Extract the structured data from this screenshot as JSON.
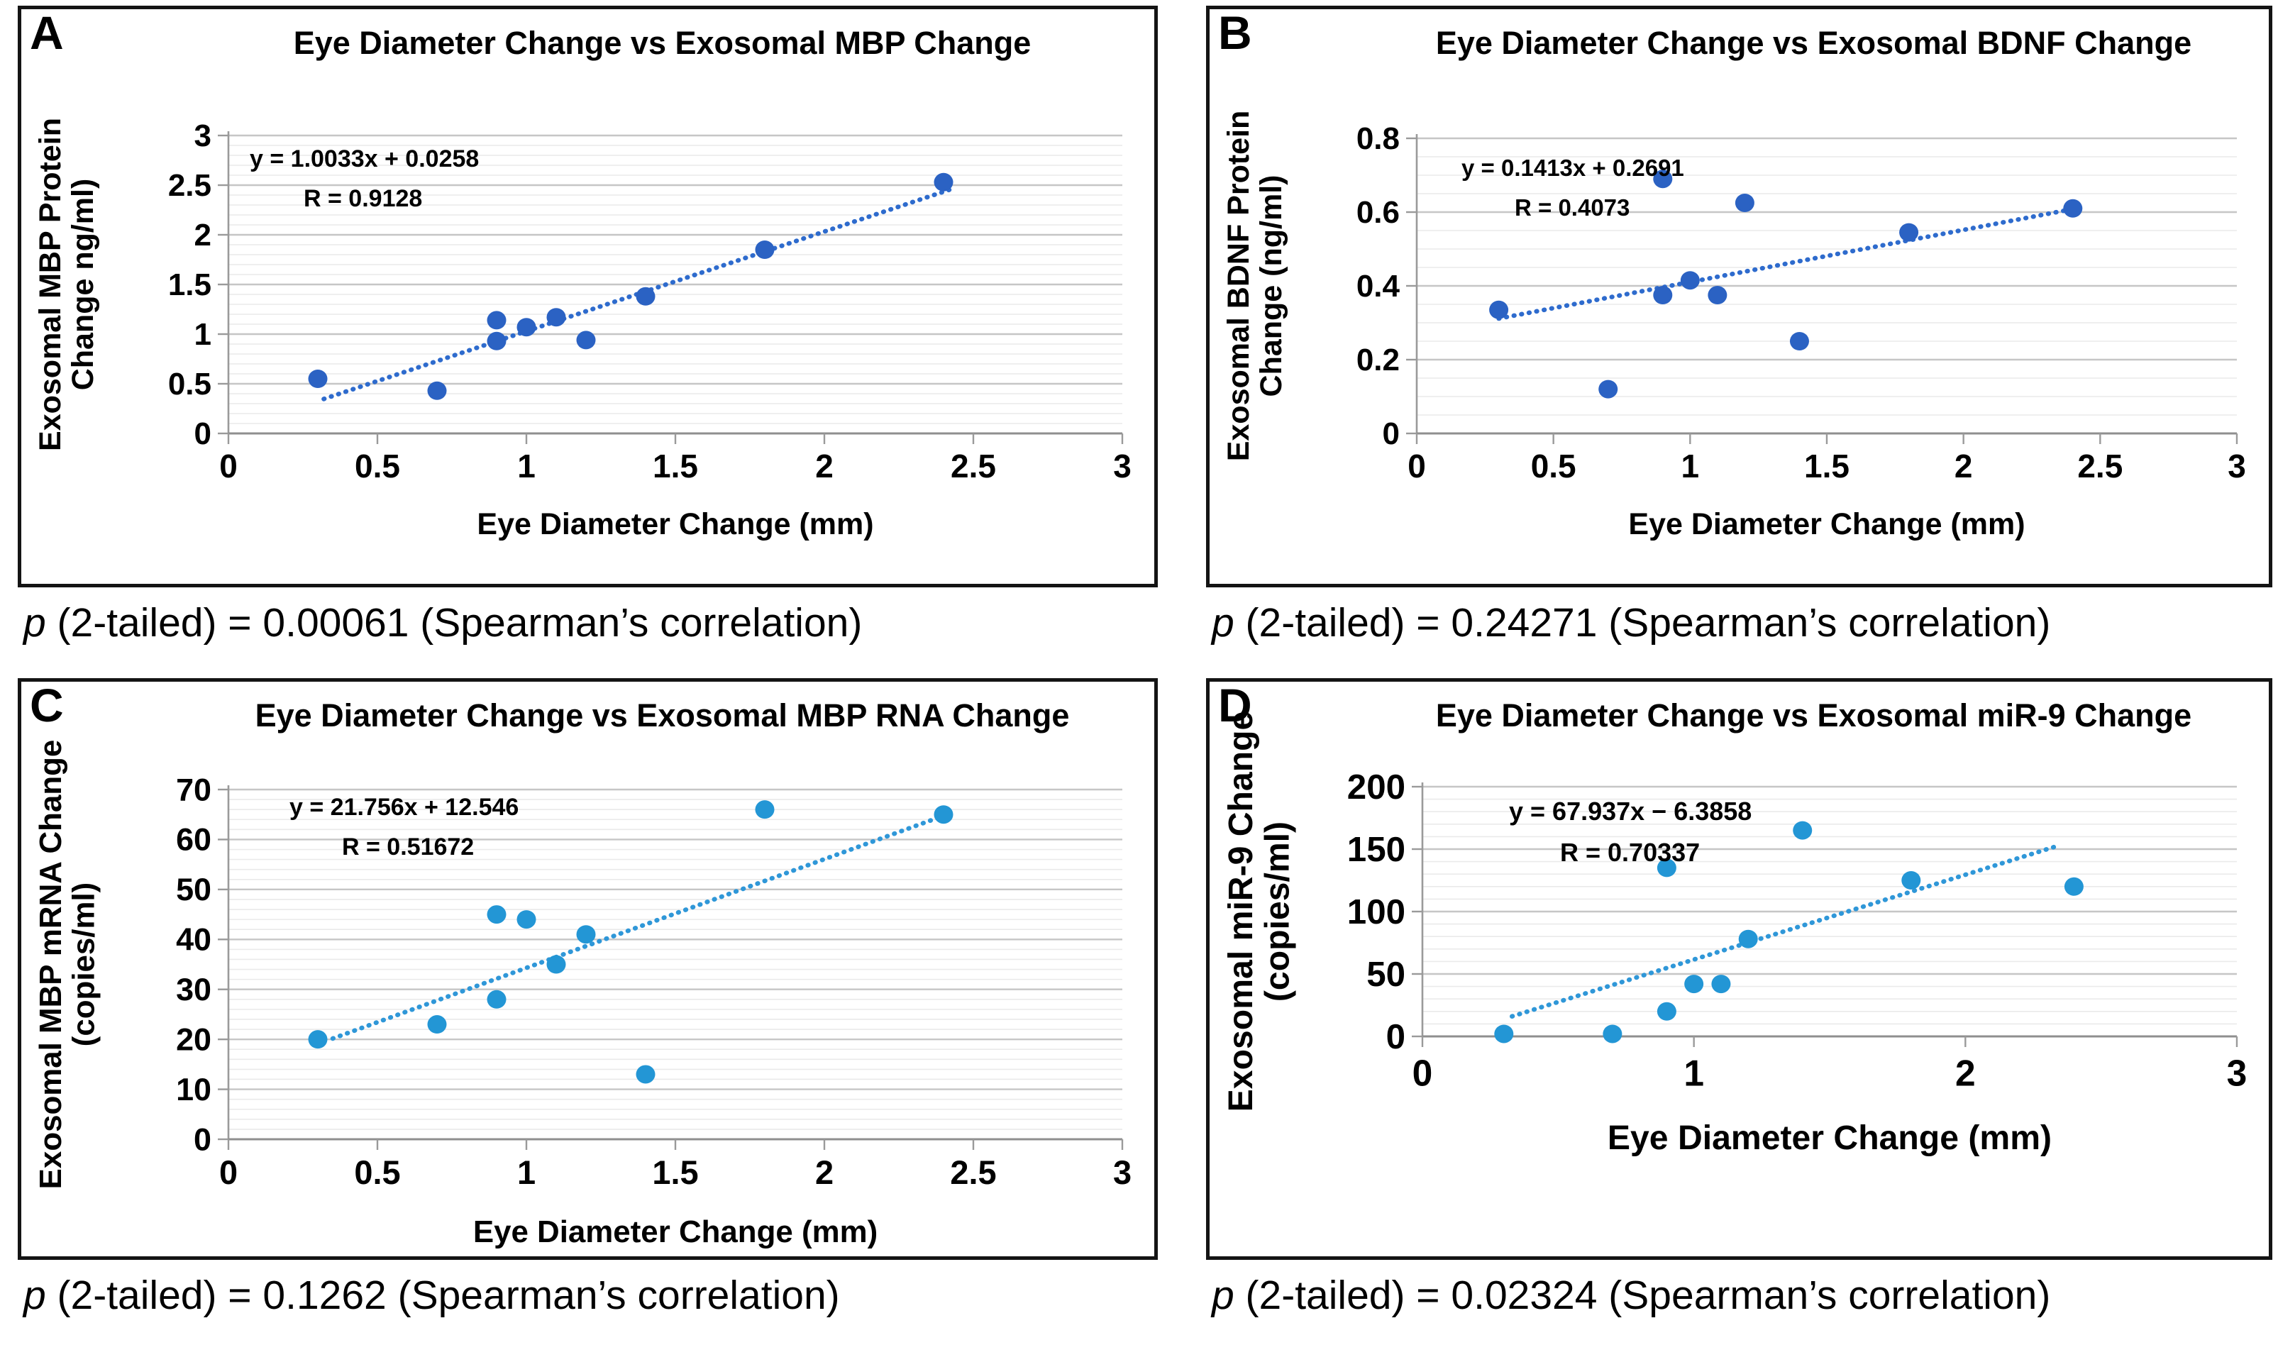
{
  "figure": {
    "background": "#ffffff",
    "x_common_label": "Eye Diameter Change (mm)"
  },
  "chart_data": [
    {
      "id": "A",
      "type": "scatter",
      "title": "Eye Diameter Change vs Exosomal MBP Change",
      "xlabel": "Eye Diameter Change (mm)",
      "ylabel_lines": [
        "Exosomal MBP Protein",
        "Change ng/ml)"
      ],
      "equation": "y = 1.0033x + 0.0258",
      "r_label": "R = 0.9128",
      "p_italic": "p",
      "p_rest": " (2-tailed) = 0.00061 (Spearman’s correlation)",
      "x": [
        0.3,
        0.7,
        0.9,
        0.9,
        1.0,
        1.1,
        1.2,
        1.4,
        1.8,
        2.4
      ],
      "y": [
        0.55,
        0.43,
        1.14,
        0.93,
        1.07,
        1.17,
        0.94,
        1.38,
        1.85,
        2.53
      ],
      "trend": {
        "slope": 1.0033,
        "intercept": 0.0258,
        "x_start": 0.32,
        "x_end": 2.43
      },
      "xlim": [
        0,
        3
      ],
      "ylim": [
        0,
        3
      ],
      "x_ticks": [
        0,
        0.5,
        1,
        1.5,
        2,
        2.5,
        3
      ],
      "y_ticks": [
        0,
        0.5,
        1,
        1.5,
        2,
        2.5,
        3
      ],
      "y_minor_step": 0.1,
      "grid": true,
      "legend": "none",
      "marker_color": "#2b62c3",
      "trend_color": "#2e6bcd"
    },
    {
      "id": "B",
      "type": "scatter",
      "title": "Eye Diameter Change vs Exosomal BDNF Change",
      "xlabel": "Eye Diameter Change  (mm)",
      "ylabel_lines": [
        "Exosomal BDNF Protein",
        "Change (ng/ml)"
      ],
      "equation": "y = 0.1413x + 0.2691",
      "r_label": "R = 0.4073",
      "p_italic": "p",
      "p_rest": " (2-tailed) = 0.24271 (Spearman’s correlation)",
      "x": [
        0.3,
        0.7,
        0.9,
        0.9,
        1.0,
        1.1,
        1.2,
        1.4,
        1.8,
        2.4
      ],
      "y": [
        0.335,
        0.12,
        0.69,
        0.375,
        0.415,
        0.375,
        0.625,
        0.25,
        0.545,
        0.61
      ],
      "trend": {
        "slope": 0.1413,
        "intercept": 0.2691,
        "x_start": 0.3,
        "x_end": 2.42
      },
      "xlim": [
        0,
        3
      ],
      "ylim": [
        0,
        0.8
      ],
      "x_ticks": [
        0,
        0.5,
        1,
        1.5,
        2,
        2.5,
        3
      ],
      "y_ticks": [
        0,
        0.2,
        0.4,
        0.6,
        0.8
      ],
      "y_minor_step": 0.05,
      "grid": true,
      "legend": "none",
      "marker_color": "#2b62c3",
      "trend_color": "#2e6bcd"
    },
    {
      "id": "C",
      "type": "scatter",
      "title": "Eye Diameter Change vs Exosomal MBP RNA Change",
      "xlabel": "Eye Diameter Change (mm)",
      "ylabel_lines": [
        "Exosomal MBP mRNA Change",
        "(copies/ml)"
      ],
      "equation": "y = 21.756x + 12.546",
      "r_label": "R = 0.51672",
      "p_italic": "p",
      "p_rest": " (2-tailed) = 0.1262 (Spearman’s correlation)",
      "x": [
        0.3,
        0.7,
        0.9,
        0.9,
        1.0,
        1.1,
        1.2,
        1.4,
        1.8,
        2.4
      ],
      "y": [
        20,
        23,
        45,
        28,
        44,
        35,
        41,
        13,
        66,
        65
      ],
      "trend": {
        "slope": 21.756,
        "intercept": 12.546,
        "x_start": 0.35,
        "x_end": 2.4
      },
      "xlim": [
        0,
        3
      ],
      "ylim": [
        0,
        70
      ],
      "x_ticks": [
        0,
        0.5,
        1,
        1.5,
        2,
        2.5,
        3
      ],
      "y_ticks": [
        0,
        10,
        20,
        30,
        40,
        50,
        60,
        70
      ],
      "y_minor_step": 2,
      "grid": true,
      "legend": "none",
      "marker_color": "#2396d5",
      "trend_color": "#2f97d8"
    },
    {
      "id": "D",
      "type": "scatter",
      "title": "Eye Diameter Change vs Exosomal miR-9 Change",
      "xlabel": "Eye Diameter Change (mm)",
      "ylabel_lines": [
        "Exosomal miR-9 Change",
        "(copies/ml)"
      ],
      "equation": "y = 67.937x − 6.3858",
      "r_label": "R = 0.70337",
      "p_italic": "p",
      "p_rest": " (2-tailed) = 0.02324 (Spearman’s correlation)",
      "x": [
        0.3,
        0.7,
        0.9,
        0.9,
        1.0,
        1.1,
        1.2,
        1.4,
        1.8,
        2.4
      ],
      "y": [
        2,
        2,
        135,
        20,
        42,
        42,
        78,
        165,
        125,
        120
      ],
      "trend": {
        "slope": 67.937,
        "intercept": -6.3858,
        "x_start": 0.33,
        "x_end": 2.35
      },
      "xlim": [
        0,
        3
      ],
      "ylim": [
        0,
        200
      ],
      "x_ticks": [
        0,
        1,
        2,
        3
      ],
      "y_ticks": [
        0,
        50,
        100,
        150,
        200
      ],
      "y_minor_step": 10,
      "grid": true,
      "legend": "none",
      "marker_color": "#2396d5",
      "trend_color": "#2f97d8"
    }
  ]
}
